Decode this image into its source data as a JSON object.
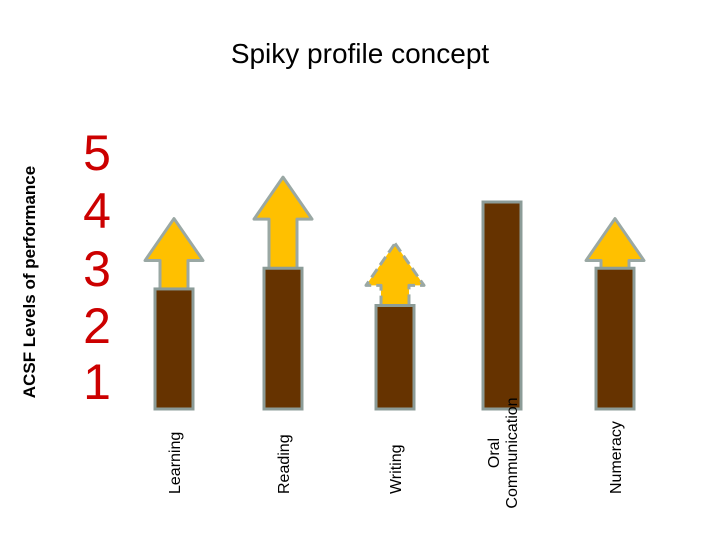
{
  "title": "Spiky profile concept",
  "chart_data": {
    "type": "bar",
    "title": "Spiky profile concept",
    "ylabel": "ACSF Levels of performance",
    "xlabel": "",
    "yticks": [
      "1",
      "2",
      "3",
      "4",
      "5"
    ],
    "ylim": [
      0,
      5
    ],
    "categories": [
      "Learning",
      "Reading",
      "Writing",
      "Oral Communication",
      "Numeracy"
    ],
    "category_lines": [
      [
        "Learning"
      ],
      [
        "Reading"
      ],
      [
        "Writing"
      ],
      [
        "Oral",
        "Communication"
      ],
      [
        "Numeracy"
      ]
    ],
    "values": [
      2.9,
      3.4,
      2.5,
      5.0,
      3.4
    ],
    "arrow_targets": [
      4.6,
      5.6,
      4.0,
      null,
      4.6
    ],
    "arrow_dashed": [
      false,
      false,
      true,
      false,
      false
    ],
    "colors": {
      "bar_fill": "#663300",
      "bar_border": "#8c9c98",
      "arrow_fill": "#ffc000",
      "arrow_border": "#9aa8a4",
      "tick_color": "#cc0000"
    }
  }
}
